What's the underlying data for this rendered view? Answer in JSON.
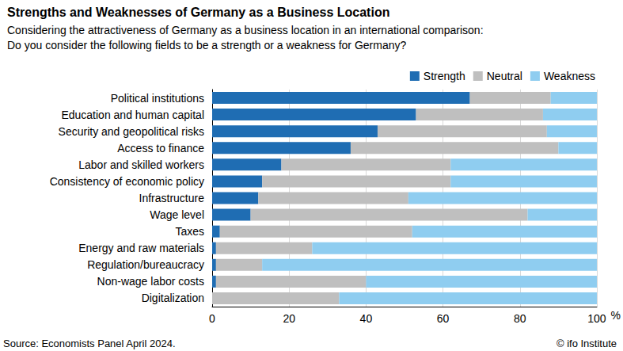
{
  "chart_data": {
    "type": "bar",
    "orientation": "horizontal",
    "stacked": true,
    "title": "Strengths and Weaknesses of Germany as a Business Location",
    "subtitle": "Considering the attractiveness of Germany as a business location in an international comparison:\nDo you consider the following fields to be a strength or a weakness for Germany?",
    "xlabel": "%",
    "annotations": [
      "Source: Economists Panel April 2024.",
      "© ifo Institute"
    ],
    "categories": [
      "Political institutions",
      "Education and human capital",
      "Security and geopolitical risks",
      "Access to finance",
      "Labor and skilled workers",
      "Consistency of economic policy",
      "Infrastructure",
      "Wage level",
      "Taxes",
      "Energy and raw materials",
      "Regulation/bureaucracy",
      "Non-wage labor costs",
      "Digitalization"
    ],
    "series": [
      {
        "name": "Strength",
        "color": "#1f6db3",
        "values": [
          67,
          53,
          43,
          36,
          18,
          13,
          12,
          10,
          2,
          1,
          1,
          1,
          0
        ]
      },
      {
        "name": "Neutral",
        "color": "#bfbfbf",
        "values": [
          21,
          33,
          44,
          54,
          44,
          49,
          39,
          72,
          50,
          25,
          12,
          39,
          33
        ]
      },
      {
        "name": "Weakness",
        "color": "#8fcdf0",
        "values": [
          12,
          14,
          13,
          10,
          38,
          38,
          49,
          18,
          48,
          74,
          87,
          60,
          67
        ]
      }
    ],
    "xlim": [
      0,
      100
    ],
    "xticks": [
      0,
      20,
      40,
      60,
      80,
      100
    ],
    "grid": true,
    "legend": "upper right",
    "data_labels": false
  }
}
